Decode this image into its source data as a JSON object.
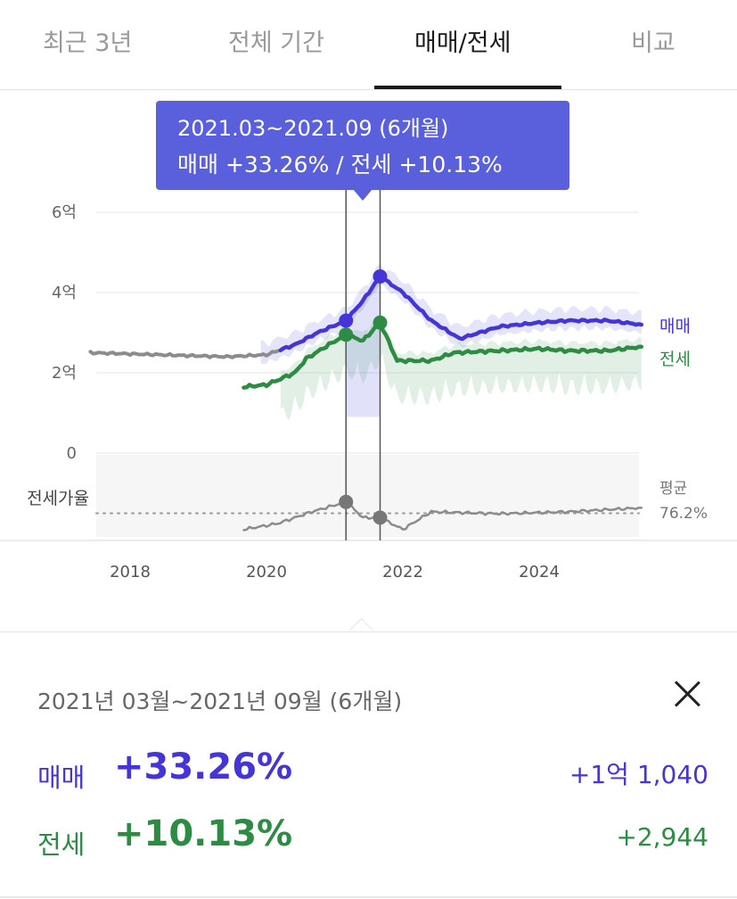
{
  "tabs": [
    {
      "label": "최근 3년",
      "active": false
    },
    {
      "label": "전체 기간",
      "active": false
    },
    {
      "label": "매매/전세",
      "active": true
    },
    {
      "label": "비교",
      "active": false
    }
  ],
  "tooltip": {
    "range": "2021.03~2021.09 (6개월)",
    "summary": "매매 +33.26%  /  전세 +10.13%"
  },
  "panel": {
    "range": "2021년 03월~2021년 09월 (6개월)",
    "sale": {
      "label": "매매",
      "pct": "+33.26%",
      "amount": "+1억 1,040"
    },
    "jeonse": {
      "label": "전세",
      "pct": "+10.13%",
      "amount": "+2,944"
    }
  },
  "colors": {
    "sale": "#4535d8",
    "jeonse": "#2e8b44",
    "ratio": "#8c8c8c",
    "accent": "#5a5fdc"
  },
  "chart_data": {
    "type": "line",
    "ylim": [
      0,
      6
    ],
    "y_ticks": [
      "6억",
      "4억",
      "2억",
      "0"
    ],
    "x_ticks": [
      "2018",
      "2020",
      "2022",
      "2024"
    ],
    "series": [
      {
        "name": "매매",
        "unit": "억",
        "points": [
          [
            "2017-06",
            2.5
          ],
          [
            "2018-06",
            2.45
          ],
          [
            "2019-06",
            2.4
          ],
          [
            "2020-01",
            2.45
          ],
          [
            "2020-06",
            2.7
          ],
          [
            "2020-10",
            3.0
          ],
          [
            "2021-03",
            3.3
          ],
          [
            "2021-06",
            3.8
          ],
          [
            "2021-09",
            4.4
          ],
          [
            "2022-01",
            4.0
          ],
          [
            "2022-06",
            3.3
          ],
          [
            "2022-11",
            2.85
          ],
          [
            "2023-06",
            3.15
          ],
          [
            "2024-01",
            3.25
          ],
          [
            "2024-06",
            3.3
          ],
          [
            "2025-01",
            3.3
          ],
          [
            "2025-07",
            3.2
          ]
        ]
      },
      {
        "name": "전세",
        "unit": "억",
        "points": [
          [
            "2019-09",
            1.65
          ],
          [
            "2020-01",
            1.7
          ],
          [
            "2020-06",
            2.0
          ],
          [
            "2020-08",
            2.35
          ],
          [
            "2020-12",
            2.7
          ],
          [
            "2021-03",
            2.95
          ],
          [
            "2021-06",
            2.8
          ],
          [
            "2021-09",
            3.25
          ],
          [
            "2021-12",
            2.3
          ],
          [
            "2022-06",
            2.3
          ],
          [
            "2022-10",
            2.5
          ],
          [
            "2023-06",
            2.55
          ],
          [
            "2024-01",
            2.6
          ],
          [
            "2024-06",
            2.55
          ],
          [
            "2025-01",
            2.55
          ],
          [
            "2025-07",
            2.65
          ]
        ]
      },
      {
        "name": "전세가율",
        "unit": "%",
        "average": "76.2%",
        "points": [
          [
            "2019-09",
            68
          ],
          [
            "2020-03",
            71
          ],
          [
            "2020-09",
            77
          ],
          [
            "2021-03",
            82
          ],
          [
            "2021-06",
            74
          ],
          [
            "2021-09",
            74
          ],
          [
            "2022-01",
            68
          ],
          [
            "2022-06",
            77
          ],
          [
            "2023-06",
            76
          ],
          [
            "2024-06",
            77
          ],
          [
            "2025-07",
            79
          ]
        ]
      }
    ],
    "labels": {
      "sale": "매매",
      "jeonse": "전세",
      "ratio": "전세가율",
      "avg_label": "평균",
      "avg_value": "76.2%"
    },
    "selection": {
      "start": "2021-03",
      "end": "2021-09"
    }
  }
}
